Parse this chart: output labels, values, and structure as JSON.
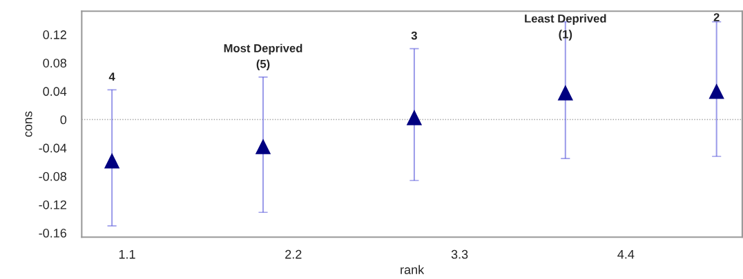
{
  "chart_data": {
    "type": "scatter",
    "xlabel": "rank",
    "ylabel": "cons",
    "x": [
      1,
      2,
      3,
      4,
      5
    ],
    "series": [
      {
        "color": "#000080",
        "values": [
          -0.058,
          -0.038,
          0.003,
          0.038,
          0.04
        ],
        "errors": [
          [
            -0.15,
            0.042
          ],
          [
            -0.131,
            0.06
          ],
          [
            -0.086,
            0.1
          ],
          [
            -0.055,
            0.138
          ],
          [
            -0.052,
            0.138
          ]
        ]
      }
    ],
    "marker": "triangle",
    "xlim": [
      0.8,
      5.17
    ],
    "xticks": [
      1.1,
      2.2,
      3.3,
      4.4
    ],
    "ylim": [
      -0.166,
      0.153
    ],
    "yticks": [
      -0.16,
      -0.12,
      -0.08,
      -0.04,
      0,
      0.04,
      0.08,
      0.12
    ],
    "ref_lines": [
      {
        "axis": "y",
        "value": 0,
        "color": "#a0a0a0",
        "line_style": "dotted"
      }
    ],
    "grid": false,
    "legend": false,
    "annotations": [
      "4",
      "Most Deprived\n(5)",
      "3",
      "Least Deprived\n(1)",
      "2"
    ]
  }
}
